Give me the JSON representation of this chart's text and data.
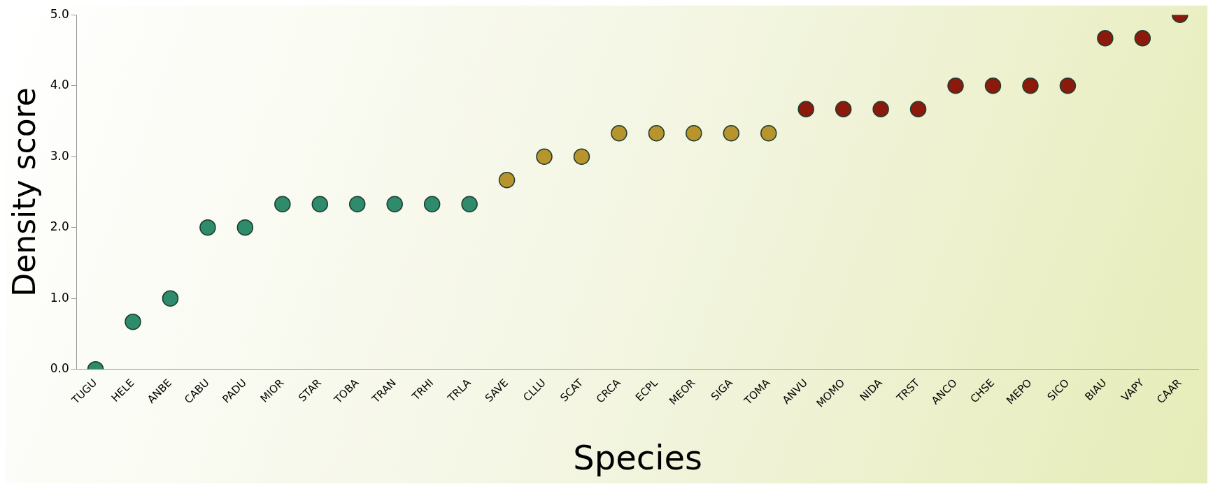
{
  "chart_data": {
    "type": "scatter",
    "xlabel": "Species",
    "ylabel": "Density score",
    "categories": [
      "TUGU",
      "HELE",
      "ANBE",
      "CABU",
      "PADU",
      "MIOR",
      "STAR",
      "TOBA",
      "TRAN",
      "TRHI",
      "TRLA",
      "SAVE",
      "CLLU",
      "SCAT",
      "CRCA",
      "ECPL",
      "MEOR",
      "SIGA",
      "TOMA",
      "ANVU",
      "MOMO",
      "NIDA",
      "TRST",
      "ANCO",
      "CHSE",
      "MEPO",
      "SICO",
      "BIAU",
      "VAPY",
      "CAAR"
    ],
    "values": [
      0,
      0.67,
      1.0,
      2.0,
      2.0,
      2.33,
      2.33,
      2.33,
      2.33,
      2.33,
      2.33,
      2.67,
      3.0,
      3.0,
      3.33,
      3.33,
      3.33,
      3.33,
      3.33,
      3.67,
      3.67,
      3.67,
      3.67,
      4.0,
      4.0,
      4.0,
      4.0,
      4.67,
      4.67,
      5.0
    ],
    "colors": [
      "#2e8b6b",
      "#2e8b6b",
      "#2e8b6b",
      "#2e8b6b",
      "#2e8b6b",
      "#2e8b6b",
      "#2e8b6b",
      "#2e8b6b",
      "#2e8b6b",
      "#2e8b6b",
      "#2e8b6b",
      "#b8952c",
      "#b8952c",
      "#b8952c",
      "#b8952c",
      "#b8952c",
      "#b8952c",
      "#b8952c",
      "#b8952c",
      "#8b1a0c",
      "#8b1a0c",
      "#8b1a0c",
      "#8b1a0c",
      "#8b1a0c",
      "#8b1a0c",
      "#8b1a0c",
      "#8b1a0c",
      "#8b1a0c",
      "#8b1a0c",
      "#8b1a0c"
    ],
    "ylim": [
      0,
      5
    ],
    "yticks": [
      {
        "value": 0,
        "label": "0.0"
      },
      {
        "value": 1,
        "label": "1.0"
      },
      {
        "value": 2,
        "label": "2.0"
      },
      {
        "value": 3,
        "label": "3.0"
      },
      {
        "value": 4,
        "label": "4.0"
      },
      {
        "value": 5,
        "label": "5.0"
      }
    ],
    "marker": "circle",
    "grid": false,
    "legend": false
  }
}
